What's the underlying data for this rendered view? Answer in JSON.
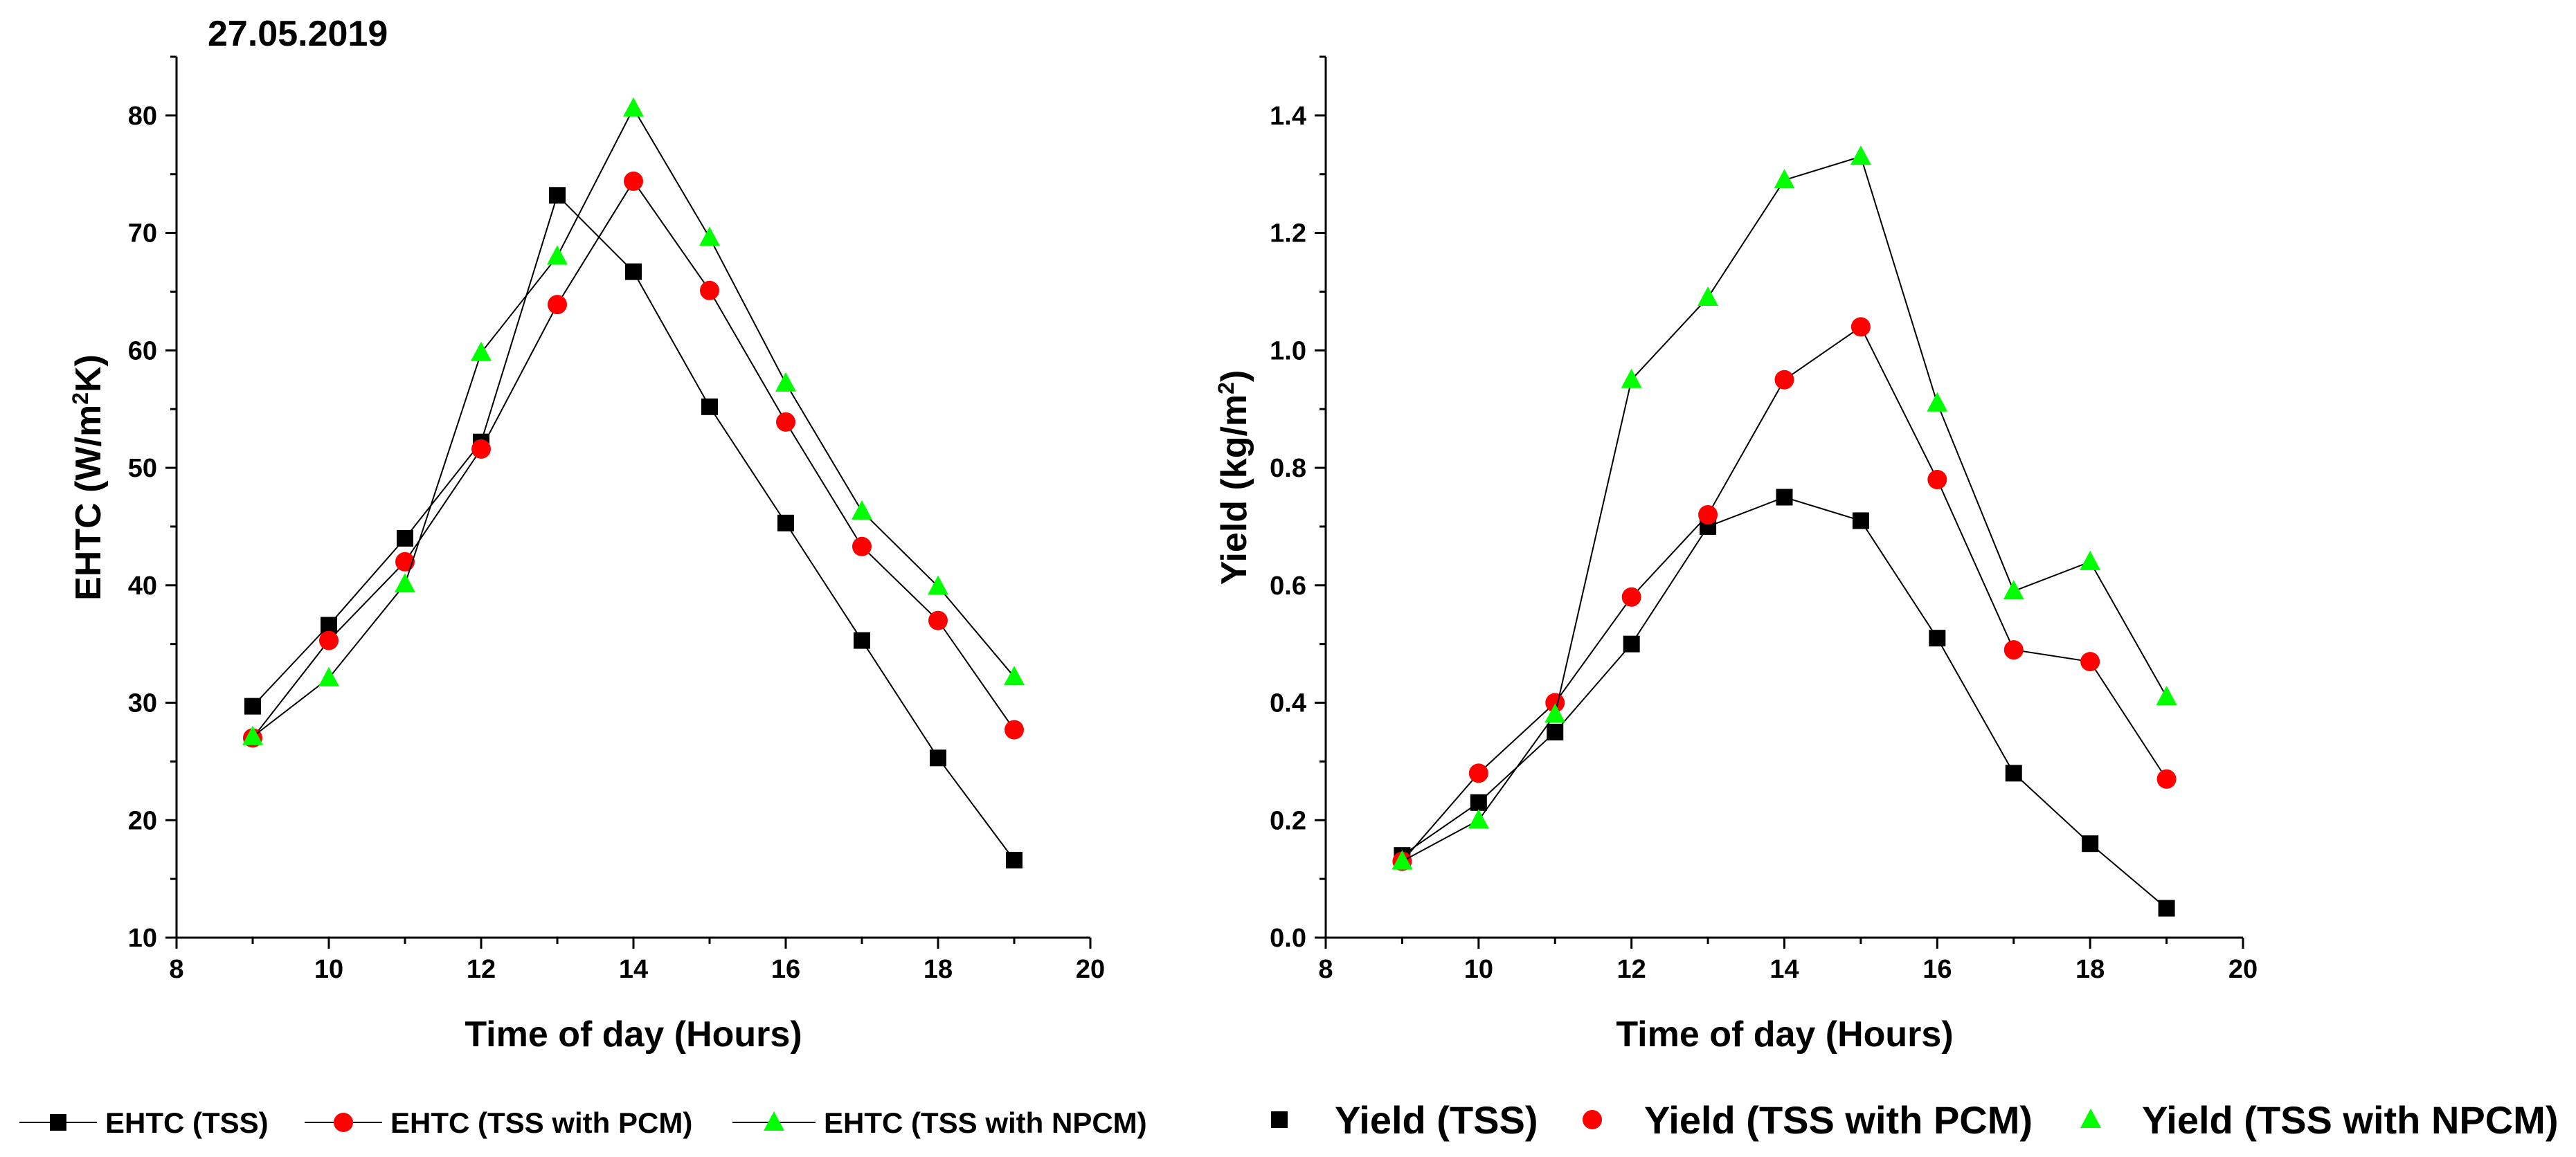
{
  "date_label": "27.05.2019",
  "colors": {
    "tss": "#000000",
    "pcm": "#ff0000",
    "npcm": "#00ff00",
    "line": "#000000"
  },
  "chart_data": [
    {
      "type": "line",
      "title": "",
      "xlabel": "Time of day (Hours)",
      "ylabel_main": "EHTC (W/m",
      "ylabel_sup": "2",
      "ylabel_tail": "K)",
      "xlim": [
        8,
        20
      ],
      "ylim": [
        10,
        85
      ],
      "xticks": [
        8,
        10,
        12,
        14,
        16,
        18,
        20
      ],
      "xtick_labels": [
        "8",
        "10",
        "12",
        "14",
        "16",
        "18",
        "20"
      ],
      "yticks": [
        10,
        20,
        30,
        40,
        50,
        60,
        70,
        80
      ],
      "ytick_labels": [
        "10",
        "20",
        "30",
        "40",
        "50",
        "60",
        "70",
        "80"
      ],
      "x": [
        9,
        10,
        11,
        12,
        13,
        14,
        15,
        16,
        17,
        18,
        19
      ],
      "lines": true,
      "series": [
        {
          "name": "EHTC (TSS)",
          "marker": "square",
          "color": "#000000",
          "values": [
            29.7,
            36.6,
            44.0,
            52.2,
            73.2,
            66.7,
            55.2,
            45.3,
            35.3,
            25.3,
            16.6
          ]
        },
        {
          "name": "EHTC (TSS with PCM)",
          "marker": "circle",
          "color": "#ff0000",
          "values": [
            27.0,
            35.3,
            42.0,
            51.6,
            63.9,
            74.4,
            65.1,
            53.9,
            43.3,
            37.0,
            27.7
          ]
        },
        {
          "name": "EHTC (TSS with NPCM)",
          "marker": "triangle",
          "color": "#00ff00",
          "values": [
            27.1,
            32.1,
            40.1,
            59.8,
            68.0,
            80.6,
            69.6,
            57.2,
            46.3,
            39.9,
            32.2
          ]
        }
      ]
    },
    {
      "type": "scatter",
      "title": "",
      "xlabel": "Time of day (Hours)",
      "ylabel_main": "Yield (kg/m",
      "ylabel_sup": "2",
      "ylabel_tail": ")",
      "xlim": [
        8,
        20
      ],
      "ylim": [
        0.0,
        1.5
      ],
      "xticks": [
        8,
        10,
        12,
        14,
        16,
        18,
        20
      ],
      "xtick_labels": [
        "8",
        "10",
        "12",
        "14",
        "16",
        "18",
        "20"
      ],
      "yticks": [
        0.0,
        0.2,
        0.4,
        0.6,
        0.8,
        1.0,
        1.2,
        1.4
      ],
      "ytick_labels": [
        "0.0",
        "0.2",
        "0.4",
        "0.6",
        "0.8",
        "1.0",
        "1.2",
        "1.4"
      ],
      "x": [
        9,
        10,
        11,
        12,
        13,
        14,
        15,
        16,
        17,
        18,
        19
      ],
      "lines": true,
      "series": [
        {
          "name": "Yield (TSS)",
          "marker": "square",
          "color": "#000000",
          "values": [
            0.14,
            0.23,
            0.35,
            0.5,
            0.7,
            0.75,
            0.71,
            0.51,
            0.28,
            0.16,
            0.05
          ]
        },
        {
          "name": "Yield (TSS with PCM)",
          "marker": "circle",
          "color": "#ff0000",
          "values": [
            0.13,
            0.28,
            0.4,
            0.58,
            0.72,
            0.95,
            1.04,
            0.78,
            0.49,
            0.47,
            0.27
          ]
        },
        {
          "name": "Yield (TSS with NPCM)",
          "marker": "triangle",
          "color": "#00ff00",
          "values": [
            0.13,
            0.2,
            0.38,
            0.95,
            1.09,
            1.29,
            1.33,
            0.91,
            0.59,
            0.64,
            0.41
          ]
        }
      ]
    }
  ]
}
